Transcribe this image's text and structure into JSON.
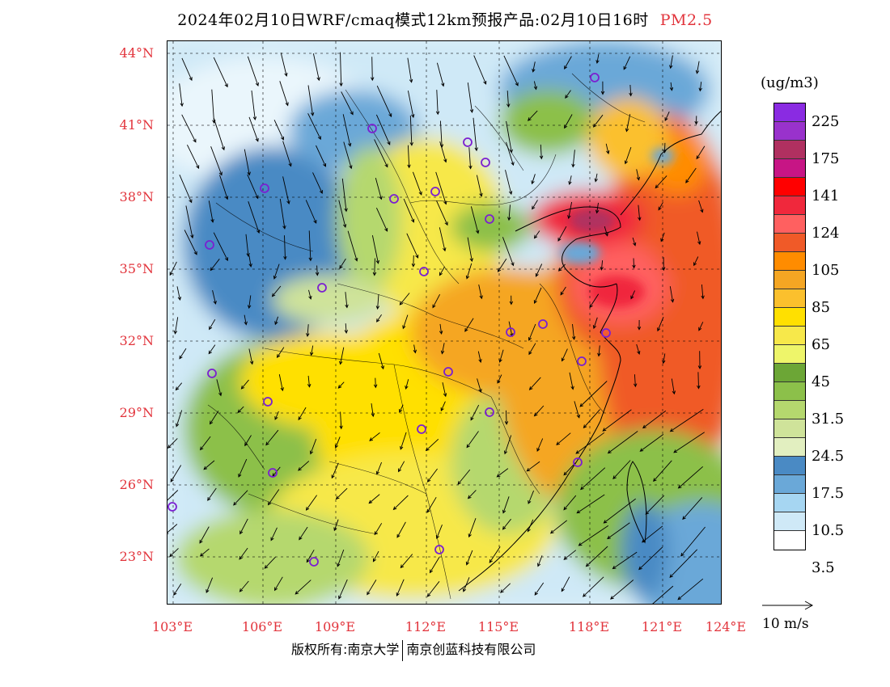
{
  "title": {
    "main": "2024年02月10日WRF/cmaq模式12km预报产品:02月10日16时",
    "pollutant": "PM2.5"
  },
  "axes": {
    "lat_labels": [
      "44°N",
      "41°N",
      "38°N",
      "35°N",
      "32°N",
      "29°N",
      "26°N",
      "23°N"
    ],
    "lon_labels": [
      "103°E",
      "106°E",
      "109°E",
      "112°E",
      "115°E",
      "118°E",
      "121°E",
      "124°E"
    ]
  },
  "legend": {
    "units": "(ug/m3)",
    "labels": [
      "225",
      "175",
      "141",
      "124",
      "105",
      "85",
      "65",
      "45",
      "31.5",
      "24.5",
      "17.5",
      "10.5",
      "3.5"
    ],
    "colors_top_to_bottom": [
      "#8a2be2",
      "#9932cc",
      "#b03060",
      "#c71585",
      "#ff0000",
      "#f0283c",
      "#ff6060",
      "#f05a28",
      "#ff8c00",
      "#f5a623",
      "#fbc02d",
      "#ffe000",
      "#f7e84a",
      "#eef56a",
      "#6ca636",
      "#8cc04a",
      "#b5d86e",
      "#cfe39a",
      "#e2efc0",
      "#4a8ac4",
      "#6aa8d8",
      "#a6d6f2",
      "#cfe9f7",
      "#ffffff"
    ]
  },
  "wind_reference": {
    "label": "10 m/s"
  },
  "copyright": {
    "left": "版权所有:南京大学",
    "right": "南京创蓝科技有限公司"
  },
  "colors": {
    "accent": "#e2343c",
    "station_ring": "#7b1fd1"
  }
}
